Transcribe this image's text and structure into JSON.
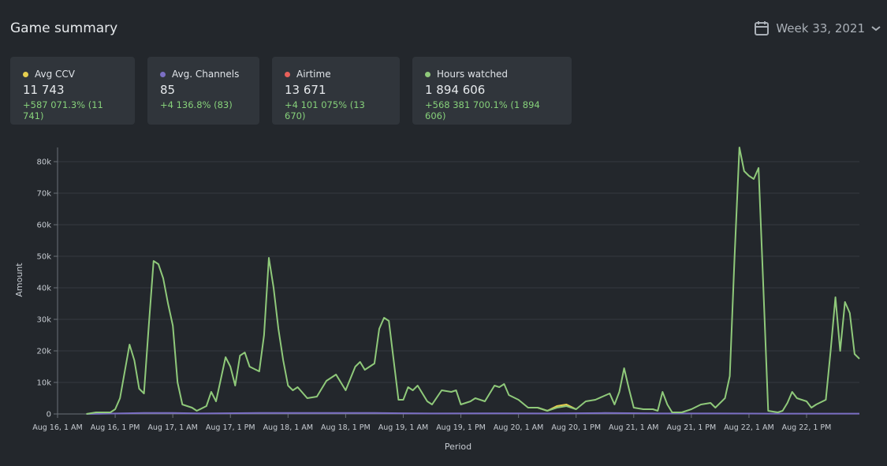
{
  "header": {
    "title": "Game summary",
    "period": "Week 33, 2021"
  },
  "cards": [
    {
      "label": "Avg CCV",
      "color": "#e6cf4f",
      "value": "11 743",
      "change": "+587 071.3% (11 741)"
    },
    {
      "label": "Avg. Channels",
      "color": "#7b6fc4",
      "value": "85",
      "change": "+4 136.8% (83)"
    },
    {
      "label": "Airtime",
      "color": "#e8605a",
      "value": "13 671",
      "change": "+4 101 075% (13 670)"
    },
    {
      "label": "Hours watched",
      "color": "#8fc97a",
      "value": "1 894 606",
      "change": "+568 381 700.1% (1 894 606)"
    }
  ],
  "chart_data": {
    "type": "line",
    "xlabel": "Period",
    "ylabel": "Amount",
    "xlim": [
      0,
      167
    ],
    "ylim": [
      0,
      84500
    ],
    "grid": true,
    "xticks": [
      {
        "value": 0,
        "label": "Aug 16, 1 AM"
      },
      {
        "value": 12,
        "label": "Aug 16, 1 PM"
      },
      {
        "value": 24,
        "label": "Aug 17, 1 AM"
      },
      {
        "value": 36,
        "label": "Aug 17, 1 PM"
      },
      {
        "value": 48,
        "label": "Aug 18, 1 AM"
      },
      {
        "value": 60,
        "label": "Aug 18, 1 PM"
      },
      {
        "value": 72,
        "label": "Aug 19, 1 AM"
      },
      {
        "value": 84,
        "label": "Aug 19, 1 PM"
      },
      {
        "value": 96,
        "label": "Aug 20, 1 AM"
      },
      {
        "value": 108,
        "label": "Aug 20, 1 PM"
      },
      {
        "value": 120,
        "label": "Aug 21, 1 AM"
      },
      {
        "value": 132,
        "label": "Aug 21, 1 PM"
      },
      {
        "value": 144,
        "label": "Aug 22, 1 AM"
      },
      {
        "value": 156,
        "label": "Aug 22, 1 PM"
      }
    ],
    "yticks": [
      0,
      {
        "value": 10000,
        "label": "10k"
      },
      {
        "value": 20000,
        "label": "20k"
      },
      {
        "value": 30000,
        "label": "30k"
      },
      {
        "value": 40000,
        "label": "40k"
      },
      {
        "value": 50000,
        "label": "50k"
      },
      {
        "value": 60000,
        "label": "60k"
      },
      {
        "value": 70000,
        "label": "70k"
      },
      {
        "value": 80000,
        "label": "80k"
      }
    ],
    "series": [
      {
        "color": "#7b6fc4",
        "x": [
          6,
          18,
          24,
          30,
          42,
          54,
          66,
          78,
          90,
          102,
          114,
          126,
          138,
          150,
          167
        ],
        "values": [
          0,
          300,
          300,
          150,
          300,
          300,
          300,
          150,
          200,
          150,
          300,
          150,
          150,
          100,
          100
        ]
      },
      {
        "color": "#e6cf4f",
        "x": [
          100,
          102,
          104,
          106,
          108
        ],
        "values": [
          2000,
          1000,
          2500,
          3000,
          1500
        ]
      },
      {
        "color": "#8fc97a",
        "x": [
          6,
          8,
          11,
          12,
          13,
          15,
          16,
          17,
          18,
          19,
          20,
          21,
          22,
          23,
          24,
          25,
          26,
          28,
          29,
          31,
          32,
          33,
          35,
          36,
          37,
          38,
          39,
          40,
          42,
          43,
          44,
          45,
          46,
          47,
          48,
          49,
          50,
          52,
          54,
          56,
          58,
          60,
          62,
          63,
          64,
          66,
          67,
          68,
          69,
          70,
          71,
          72,
          73,
          74,
          75,
          77,
          78,
          80,
          82,
          83,
          84,
          86,
          87,
          89,
          91,
          92,
          93,
          94,
          96,
          98,
          100,
          102,
          104,
          106,
          108,
          110,
          112,
          115,
          116,
          117,
          118,
          119,
          120,
          122,
          124,
          125,
          126,
          127,
          128,
          130,
          132,
          134,
          136,
          137,
          139,
          140,
          141,
          142,
          143,
          144,
          145,
          146,
          147,
          148,
          150,
          151,
          152,
          153,
          154,
          156,
          157,
          158,
          160,
          161,
          162,
          163,
          164,
          165,
          166,
          167
        ],
        "values": [
          0,
          500,
          500,
          1500,
          5000,
          22000,
          17000,
          8000,
          6500,
          28000,
          48500,
          47500,
          43000,
          35000,
          28000,
          10000,
          3000,
          2000,
          1000,
          2500,
          7000,
          4000,
          18000,
          15000,
          9000,
          18500,
          19500,
          15000,
          13500,
          25000,
          49500,
          40000,
          27000,
          17000,
          9000,
          7500,
          8500,
          5000,
          5500,
          10500,
          12500,
          7500,
          15000,
          16500,
          14000,
          16000,
          27000,
          30500,
          29500,
          17000,
          4500,
          4500,
          8500,
          7500,
          9000,
          4000,
          3000,
          7500,
          7000,
          7500,
          3000,
          4000,
          5000,
          4000,
          9000,
          8500,
          9500,
          6000,
          4500,
          2000,
          2000,
          1000,
          2000,
          2500,
          1500,
          4000,
          4500,
          6500,
          3000,
          7000,
          14500,
          8000,
          2000,
          1500,
          1500,
          1000,
          7000,
          3000,
          500,
          500,
          1500,
          3000,
          3500,
          2000,
          5000,
          12000,
          50000,
          84500,
          77000,
          75500,
          74500,
          78000,
          40000,
          1000,
          500,
          1000,
          3500,
          7000,
          5000,
          4000,
          2000,
          3000,
          4500,
          20000,
          37000,
          20000,
          35500,
          32000,
          19000,
          17500
        ]
      }
    ]
  }
}
